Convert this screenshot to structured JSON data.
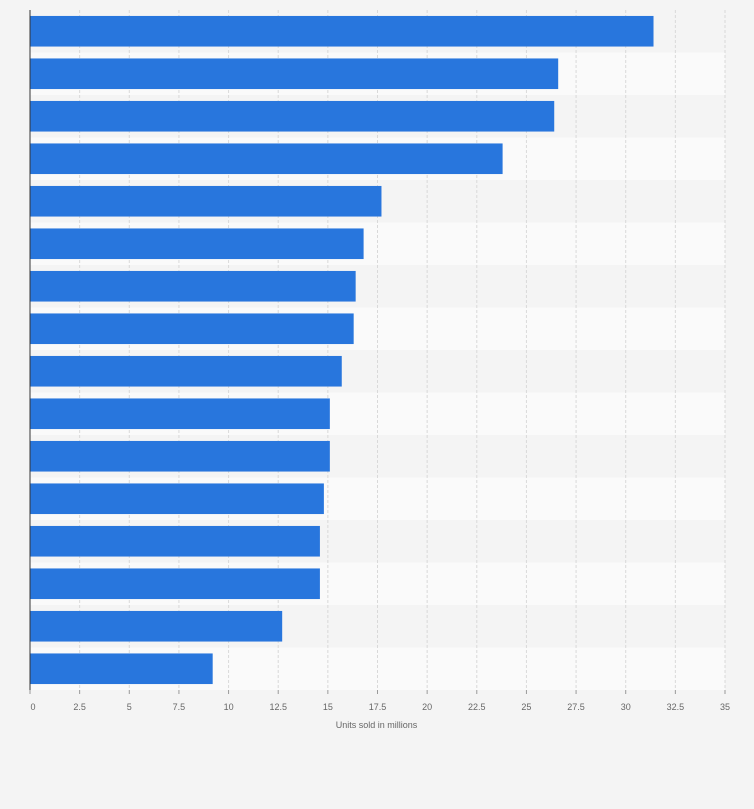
{
  "chart_data": {
    "type": "bar",
    "orientation": "horizontal",
    "title": "",
    "xlabel": "Units sold in millions",
    "ylabel": "",
    "xlim": [
      0,
      35
    ],
    "x_ticks": [
      "0",
      "2.5",
      "5",
      "7.5",
      "10",
      "12.5",
      "15",
      "17.5",
      "20",
      "22.5",
      "25",
      "27.5",
      "30",
      "32.5",
      "35"
    ],
    "x_tick_values": [
      0,
      2.5,
      5,
      7.5,
      10,
      12.5,
      15,
      17.5,
      20,
      22.5,
      25,
      27.5,
      30,
      32.5,
      35
    ],
    "categories": [
      "",
      "",
      "",
      "",
      "",
      "",
      "",
      "",
      "",
      "",
      "",
      "",
      "",
      "",
      "",
      ""
    ],
    "values": [
      31.4,
      26.6,
      26.4,
      23.8,
      17.7,
      16.8,
      16.4,
      16.3,
      15.7,
      15.1,
      15.1,
      14.8,
      14.6,
      14.6,
      12.7,
      9.2
    ],
    "grid": true,
    "legend": "none",
    "bar_color": "#2876dd",
    "band_colors": [
      "#f4f4f4",
      "#fafafa"
    ]
  }
}
